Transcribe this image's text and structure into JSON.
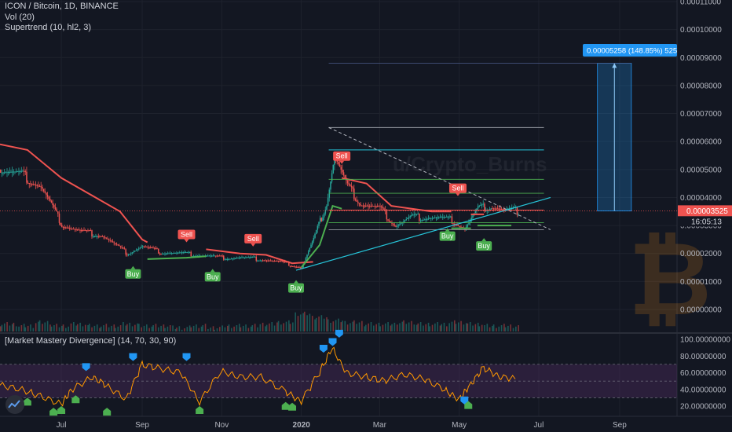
{
  "header": {
    "symbol_line": "ICON / Bitcoin, 1D, BINANCE",
    "vol_line": "Vol (20)",
    "supertrend_line": "Supertrend (10, hl2, 3)",
    "osc_line": "[Market Mastery Divergence] (14, 70, 30, 90)"
  },
  "watermark": "u/Crypto_Burns",
  "colors": {
    "background": "#131722",
    "grid": "#1e222d",
    "bull": "#26a69a",
    "bear": "#ef5350",
    "supertrend_up": "#4caf50",
    "supertrend_down": "#ef5350",
    "trendline": "#26c6da",
    "level_lines": "#787b86",
    "osc_line": "#ff9800",
    "osc_band": "#4a2a5a",
    "accent_blue": "#2196f3"
  },
  "chart_data": [
    {
      "type": "candlestick",
      "title": "ICON / Bitcoin, 1D, BINANCE",
      "ylim": [
        0,
        0.00011
      ],
      "y_ticks": [
        "0.00011000",
        "0.00010000",
        "0.00009000",
        "0.00008000",
        "0.00007000",
        "0.00006000",
        "0.00005000",
        "0.00004000",
        "0.00003000",
        "0.00002000",
        "0.00001000",
        "0.00000000"
      ],
      "x_ticks": [
        "Jul",
        "Sep",
        "Nov",
        "2020",
        "Mar",
        "May",
        "Jul",
        "Sep"
      ],
      "x_range": [
        "2019-05-15",
        "2020-10-15"
      ],
      "series": [
        {
          "name": "price_approx",
          "x": [
            "2019-05-15",
            "2019-06-01",
            "2019-06-15",
            "2019-07-01",
            "2019-07-15",
            "2019-08-01",
            "2019-08-20",
            "2019-09-01",
            "2019-09-15",
            "2019-10-01",
            "2019-10-15",
            "2019-11-01",
            "2019-11-15",
            "2019-12-01",
            "2019-12-15",
            "2020-01-01",
            "2020-01-10",
            "2020-01-20",
            "2020-01-26",
            "2020-02-05",
            "2020-02-15",
            "2020-03-01",
            "2020-03-13",
            "2020-03-25",
            "2020-04-10",
            "2020-04-25",
            "2020-05-05",
            "2020-05-15",
            "2020-05-25",
            "2020-06-05",
            "2020-06-15"
          ],
          "values": [
            5e-05,
            4.8e-05,
            4.4e-05,
            3.05e-05,
            2.8e-05,
            2.65e-05,
            2e-05,
            2.25e-05,
            2.05e-05,
            2e-05,
            1.95e-05,
            1.85e-05,
            1.85e-05,
            1.8e-05,
            1.7e-05,
            1.5e-05,
            2.5e-05,
            3.8e-05,
            5.5e-05,
            4.4e-05,
            3.8e-05,
            3.6e-05,
            3e-05,
            3.3e-05,
            3.3e-05,
            3.2e-05,
            2.9e-05,
            3.6e-05,
            3.7e-05,
            3.55e-05,
            3.52e-05
          ]
        }
      ],
      "supertrend": {
        "down": {
          "x": [
            "2019-05-15",
            "2019-06-05",
            "2019-07-01",
            "2019-08-15",
            "2019-09-01",
            "2019-09-05"
          ],
          "values": [
            5.9e-05,
            5.7e-05,
            4.7e-05,
            3.5e-05,
            2.5e-05,
            2.4e-05
          ]
        },
        "up": {
          "x": [
            "2019-09-05",
            "2019-10-05",
            "2019-10-20"
          ],
          "values": [
            1.8e-05,
            1.85e-05,
            1.9e-05
          ]
        },
        "down2": {
          "x": [
            "2019-10-20",
            "2019-11-15",
            "2019-12-05",
            "2019-12-25",
            "2020-01-10"
          ],
          "values": [
            2.15e-05,
            2e-05,
            1.95e-05,
            1.65e-05,
            1.7e-05
          ]
        },
        "up2": {
          "x": [
            "2020-01-01",
            "2020-01-15",
            "2020-01-25",
            "2020-02-01"
          ],
          "values": [
            1.5e-05,
            2.3e-05,
            3.7e-05,
            3.6e-05
          ]
        },
        "down3": {
          "x": [
            "2020-02-01",
            "2020-02-20",
            "2020-03-10",
            "2020-04-10",
            "2020-04-25"
          ],
          "values": [
            4.7e-05,
            4.5e-05,
            3.7e-05,
            3.5e-05,
            3.5e-05
          ]
        },
        "up3": {
          "x": [
            "2020-04-25",
            "2020-05-01",
            "2020-05-10"
          ],
          "values": [
            2.9e-05,
            2.9e-05,
            2.9e-05
          ]
        },
        "down4": {
          "x": [
            "2020-05-10",
            "2020-05-20"
          ],
          "values": [
            3.4e-05,
            3.4e-05
          ]
        },
        "up4": {
          "x": [
            "2020-05-15",
            "2020-06-10"
          ],
          "values": [
            3e-05,
            3e-05
          ]
        }
      },
      "levels": [
        6.5e-05,
        5.7e-05,
        4.65e-05,
        4.15e-05,
        3.55e-05,
        3.1e-05,
        2.85e-05
      ],
      "triangle": {
        "upper": {
          "x": [
            "2020-01-22",
            "2020-07-10"
          ],
          "values": [
            6.5e-05,
            2.85e-05
          ]
        },
        "lower": {
          "x": [
            "2019-12-28",
            "2020-07-10"
          ],
          "values": [
            1.4e-05,
            4e-05
          ]
        }
      },
      "signals": [
        {
          "label": "Buy",
          "x": "2019-08-25",
          "y": 1.55e-05,
          "kind": "buy"
        },
        {
          "label": "Sell",
          "x": "2019-10-05",
          "y": 2.4e-05,
          "kind": "sell"
        },
        {
          "label": "Buy",
          "x": "2019-10-25",
          "y": 1.45e-05,
          "kind": "buy"
        },
        {
          "label": "Sell",
          "x": "2019-11-25",
          "y": 2.25e-05,
          "kind": "sell"
        },
        {
          "label": "Buy",
          "x": "2019-12-28",
          "y": 1.05e-05,
          "kind": "buy"
        },
        {
          "label": "Sell",
          "x": "2020-02-01",
          "y": 5.2e-05,
          "kind": "sell"
        },
        {
          "label": "Sell",
          "x": "2020-04-30",
          "y": 4.05e-05,
          "kind": "sell"
        },
        {
          "label": "Buy",
          "x": "2020-04-22",
          "y": 2.9e-05,
          "kind": "buy"
        },
        {
          "label": "Buy",
          "x": "2020-05-20",
          "y": 2.55e-05,
          "kind": "buy"
        }
      ],
      "last_price": "0.00003525",
      "countdown": "16:05:13",
      "target_label": "0.00005258 (148.85%) 525",
      "target_box": {
        "x": [
          "2020-08-15",
          "2020-09-10"
        ],
        "values": [
          3.52e-05,
          8.8e-05
        ]
      }
    },
    {
      "type": "line",
      "title": "[Market Mastery Divergence] (14, 70, 30, 90)",
      "ylim": [
        10,
        105
      ],
      "y_ticks": [
        "100.00000000",
        "80.00000000",
        "60.00000000",
        "40.00000000",
        "20.00000000"
      ],
      "band": [
        30,
        70
      ],
      "series": [
        {
          "name": "oscillator",
          "x": [
            "2019-05-15",
            "2019-06-01",
            "2019-06-15",
            "2019-07-01",
            "2019-07-10",
            "2019-07-25",
            "2019-08-05",
            "2019-08-20",
            "2019-09-01",
            "2019-09-15",
            "2019-10-01",
            "2019-10-15",
            "2019-11-01",
            "2019-11-15",
            "2019-12-01",
            "2019-12-20",
            "2020-01-01",
            "2020-01-15",
            "2020-01-25",
            "2020-02-05",
            "2020-02-20",
            "2020-03-05",
            "2020-03-20",
            "2020-04-05",
            "2020-04-20",
            "2020-05-01",
            "2020-05-10",
            "2020-05-20",
            "2020-06-01",
            "2020-06-15"
          ],
          "values": [
            45,
            40,
            32,
            22,
            40,
            55,
            45,
            28,
            70,
            65,
            60,
            25,
            62,
            55,
            55,
            38,
            25,
            60,
            90,
            60,
            55,
            50,
            58,
            52,
            40,
            28,
            45,
            66,
            55,
            52
          ]
        }
      ],
      "markers_up": [
        {
          "x": "2019-07-20",
          "y": 62
        },
        {
          "x": "2019-08-25",
          "y": 74
        },
        {
          "x": "2019-10-05",
          "y": 74
        },
        {
          "x": "2020-01-18",
          "y": 84
        },
        {
          "x": "2020-01-25",
          "y": 92
        },
        {
          "x": "2020-01-30",
          "y": 102
        },
        {
          "x": "2020-05-05",
          "y": 22
        }
      ],
      "markers_down": [
        {
          "x": "2019-06-05",
          "y": 30
        },
        {
          "x": "2019-06-25",
          "y": 18
        },
        {
          "x": "2019-07-01",
          "y": 20
        },
        {
          "x": "2019-07-12",
          "y": 33
        },
        {
          "x": "2019-08-05",
          "y": 18
        },
        {
          "x": "2019-10-15",
          "y": 20
        },
        {
          "x": "2019-12-20",
          "y": 25
        },
        {
          "x": "2019-12-25",
          "y": 24
        },
        {
          "x": "2020-05-08",
          "y": 26
        }
      ]
    }
  ],
  "volume": {
    "x_range": [
      "2019-05-15",
      "2020-06-15"
    ],
    "note_values_relative": [
      3,
      2,
      4,
      2,
      3,
      2,
      2,
      3,
      2,
      2,
      1,
      2,
      1,
      2,
      2,
      3,
      4,
      9,
      7,
      5,
      4,
      3,
      3,
      4,
      3,
      3,
      4,
      3,
      2,
      2
    ]
  }
}
